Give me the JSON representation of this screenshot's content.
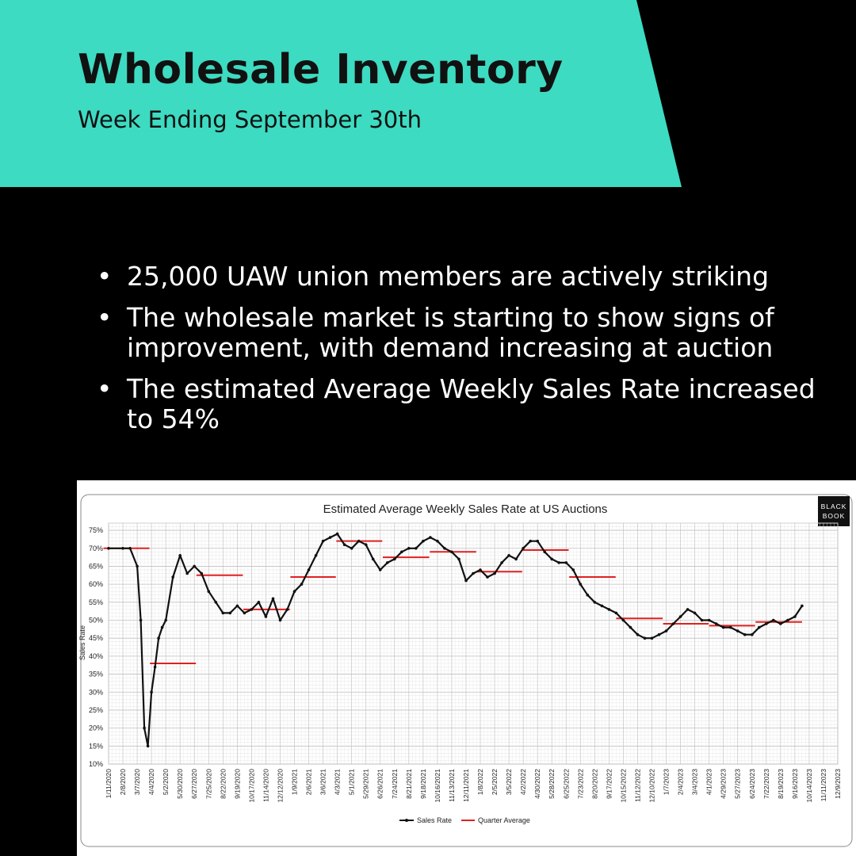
{
  "header": {
    "title": "Wholesale Inventory",
    "subtitle": "Week Ending September 30th",
    "accent_color": "#3ddbc1"
  },
  "bullets": [
    "25,000 UAW union members are actively striking",
    "The wholesale market is starting to show signs of improvement, with demand increasing at auction",
    "The estimated Average Weekly Sales Rate increased to 54%"
  ],
  "chart_data": {
    "type": "line",
    "title": "Estimated Average Weekly Sales Rate at US Auctions",
    "ylabel": "Sales Rate",
    "xlabel": "",
    "logo_lines": [
      "BLACK",
      "BOOK"
    ],
    "ylim": [
      10,
      77
    ],
    "yticks": [
      "10%",
      "15%",
      "20%",
      "25%",
      "30%",
      "35%",
      "40%",
      "45%",
      "50%",
      "55%",
      "60%",
      "65%",
      "70%",
      "75%"
    ],
    "xticks": [
      "1/11/2020",
      "2/8/2020",
      "3/7/2020",
      "4/4/2020",
      "5/2/2020",
      "5/30/2020",
      "6/27/2020",
      "7/25/2020",
      "8/22/2020",
      "9/19/2020",
      "10/17/2020",
      "11/14/2020",
      "12/12/2020",
      "1/9/2021",
      "2/6/2021",
      "3/6/2021",
      "4/3/2021",
      "5/1/2021",
      "5/29/2021",
      "6/26/2021",
      "7/24/2021",
      "8/21/2021",
      "9/18/2021",
      "10/16/2021",
      "11/13/2021",
      "12/11/2021",
      "1/8/2022",
      "2/5/2022",
      "3/5/2022",
      "4/2/2022",
      "4/30/2022",
      "5/28/2022",
      "6/25/2022",
      "7/23/2022",
      "8/20/2022",
      "9/17/2022",
      "10/15/2022",
      "11/12/2022",
      "12/10/2022",
      "1/7/2023",
      "2/4/2023",
      "3/4/2023",
      "4/1/2023",
      "4/29/2023",
      "5/27/2023",
      "6/24/2023",
      "7/22/2023",
      "8/19/2023",
      "9/16/2023",
      "10/14/2023",
      "11/11/2023",
      "12/9/2023"
    ],
    "grid": true,
    "legend_placement": "bottom",
    "series": [
      {
        "name": "Sales Rate",
        "color": "#111111",
        "x": [
          "1/11/2020",
          "2/8/2020",
          "2/22/2020",
          "3/7/2020",
          "3/14/2020",
          "3/21/2020",
          "3/28/2020",
          "4/4/2020",
          "4/11/2020",
          "4/18/2020",
          "4/25/2020",
          "5/2/2020",
          "5/16/2020",
          "5/30/2020",
          "6/13/2020",
          "6/27/2020",
          "7/11/2020",
          "7/25/2020",
          "8/8/2020",
          "8/22/2020",
          "9/5/2020",
          "9/19/2020",
          "10/3/2020",
          "10/17/2020",
          "10/31/2020",
          "11/14/2020",
          "11/28/2020",
          "12/12/2020",
          "12/26/2020",
          "1/9/2021",
          "1/23/2021",
          "2/6/2021",
          "2/20/2021",
          "3/6/2021",
          "3/20/2021",
          "4/3/2021",
          "4/17/2021",
          "5/1/2021",
          "5/15/2021",
          "5/29/2021",
          "6/12/2021",
          "6/26/2021",
          "7/10/2021",
          "7/24/2021",
          "8/7/2021",
          "8/21/2021",
          "9/4/2021",
          "9/18/2021",
          "10/2/2021",
          "10/16/2021",
          "10/30/2021",
          "11/13/2021",
          "11/27/2021",
          "12/11/2021",
          "12/25/2021",
          "1/8/2022",
          "1/22/2022",
          "2/5/2022",
          "2/19/2022",
          "3/5/2022",
          "3/19/2022",
          "4/2/2022",
          "4/16/2022",
          "4/30/2022",
          "5/14/2022",
          "5/28/2022",
          "6/11/2022",
          "6/25/2022",
          "7/9/2022",
          "7/23/2022",
          "8/6/2022",
          "8/20/2022",
          "9/3/2022",
          "9/17/2022",
          "10/1/2022",
          "10/15/2022",
          "10/29/2022",
          "11/12/2022",
          "11/26/2022",
          "12/10/2022",
          "12/24/2022",
          "1/7/2023",
          "1/21/2023",
          "2/4/2023",
          "2/18/2023",
          "3/4/2023",
          "3/18/2023",
          "4/1/2023",
          "4/15/2023",
          "4/29/2023",
          "5/13/2023",
          "5/27/2023",
          "6/10/2023",
          "6/24/2023",
          "7/8/2023",
          "7/22/2023",
          "8/5/2023",
          "8/19/2023",
          "9/2/2023",
          "9/16/2023",
          "9/30/2023"
        ],
        "y": [
          70,
          70,
          70,
          65,
          50,
          20,
          15,
          30,
          37,
          45,
          48,
          50,
          62,
          68,
          63,
          65,
          63,
          58,
          55,
          52,
          52,
          54,
          52,
          53,
          55,
          51,
          56,
          50,
          53,
          58,
          60,
          64,
          68,
          72,
          73,
          74,
          71,
          70,
          72,
          71,
          67,
          64,
          66,
          67,
          69,
          70,
          70,
          72,
          73,
          72,
          70,
          69,
          67,
          61,
          63,
          64,
          62,
          63,
          66,
          68,
          67,
          70,
          72,
          72,
          69,
          67,
          66,
          66,
          64,
          60,
          57,
          55,
          54,
          53,
          52,
          50,
          48,
          46,
          45,
          45,
          46,
          47,
          49,
          51,
          53,
          52,
          50,
          50,
          49,
          48,
          48,
          47,
          46,
          46,
          48,
          49,
          50,
          49,
          50,
          51,
          54
        ]
      },
      {
        "name": "Quarter Average",
        "color": "#e02020",
        "segments": [
          {
            "from": "1/1/2020",
            "to": "3/31/2020",
            "value": 70
          },
          {
            "from": "4/1/2020",
            "to": "6/30/2020",
            "value": 38
          },
          {
            "from": "7/1/2020",
            "to": "9/30/2020",
            "value": 62.5
          },
          {
            "from": "10/1/2020",
            "to": "12/31/2020",
            "value": 53
          },
          {
            "from": "1/1/2021",
            "to": "3/31/2021",
            "value": 62
          },
          {
            "from": "4/1/2021",
            "to": "6/30/2021",
            "value": 72
          },
          {
            "from": "7/1/2021",
            "to": "9/30/2021",
            "value": 67.5
          },
          {
            "from": "10/1/2021",
            "to": "12/31/2021",
            "value": 69
          },
          {
            "from": "1/1/2022",
            "to": "3/31/2022",
            "value": 63.5
          },
          {
            "from": "4/1/2022",
            "to": "6/30/2022",
            "value": 69.5
          },
          {
            "from": "7/1/2022",
            "to": "9/30/2022",
            "value": 62
          },
          {
            "from": "10/1/2022",
            "to": "12/31/2022",
            "value": 50.5
          },
          {
            "from": "1/1/2023",
            "to": "3/31/2023",
            "value": 49
          },
          {
            "from": "4/1/2023",
            "to": "6/30/2023",
            "value": 48.5
          },
          {
            "from": "7/1/2023",
            "to": "9/30/2023",
            "value": 49.5
          }
        ]
      }
    ]
  }
}
